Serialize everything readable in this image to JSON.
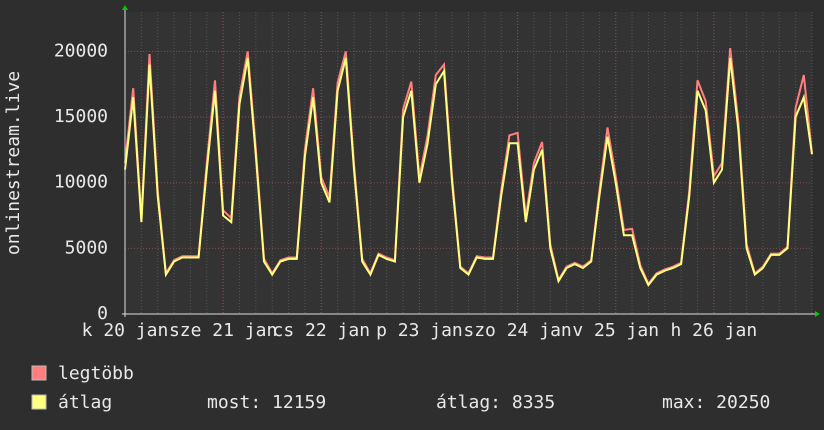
{
  "chart_data": {
    "type": "line",
    "y_label": "onlinestream.live",
    "categories": [
      "k 20 jan",
      null,
      null,
      null,
      null,
      null,
      null,
      null,
      null,
      null,
      null,
      null,
      "sze 21 jan",
      null,
      null,
      null,
      null,
      null,
      null,
      null,
      null,
      null,
      null,
      null,
      "cs 22 jan",
      null,
      null,
      null,
      null,
      null,
      null,
      null,
      null,
      null,
      null,
      null,
      "p 23 jan",
      null,
      null,
      null,
      null,
      null,
      null,
      null,
      null,
      null,
      null,
      null,
      "szo 24 jan",
      null,
      null,
      null,
      null,
      null,
      null,
      null,
      null,
      null,
      null,
      null,
      "v 25 jan",
      null,
      null,
      null,
      null,
      null,
      null,
      null,
      null,
      null,
      null,
      null,
      "h 26 jan",
      null,
      null,
      null,
      null,
      null,
      null,
      null,
      null,
      null,
      null,
      null,
      null
    ],
    "series": [
      {
        "name": "legtöbb",
        "color": "#ff7f7f",
        "values": [
          11500,
          17200,
          7300,
          19800,
          9400,
          3100,
          4100,
          4400,
          4400,
          4400,
          11500,
          17800,
          7900,
          7300,
          16600,
          20000,
          12500,
          4200,
          3100,
          4100,
          4300,
          4300,
          12500,
          17200,
          10400,
          8900,
          17600,
          20000,
          11400,
          4200,
          3100,
          4600,
          4300,
          4100,
          15600,
          17700,
          10400,
          13600,
          18200,
          19000,
          10400,
          3600,
          3100,
          4400,
          4300,
          4300,
          9400,
          13600,
          13800,
          7400,
          11500,
          13100,
          5300,
          2600,
          3600,
          3900,
          3600,
          4100,
          9400,
          14200,
          10500,
          6400,
          6500,
          3700,
          2300,
          3100,
          3400,
          3600,
          3900,
          9400,
          17800,
          16200,
          10500,
          11500,
          20250,
          14600,
          5300,
          3100,
          3600,
          4600,
          4600,
          5100,
          15700,
          18200,
          12200
        ]
      },
      {
        "name": "átlag",
        "color": "#ffff80",
        "values": [
          11000,
          16500,
          7000,
          19000,
          9000,
          3000,
          4000,
          4300,
          4300,
          4300,
          11000,
          17000,
          7500,
          7000,
          16000,
          19500,
          12000,
          4000,
          3000,
          4000,
          4200,
          4200,
          12000,
          16500,
          10000,
          8500,
          17000,
          19500,
          11000,
          4000,
          3000,
          4500,
          4200,
          4000,
          15000,
          17000,
          10000,
          13000,
          17500,
          18500,
          10000,
          3500,
          3000,
          4300,
          4200,
          4200,
          9000,
          13000,
          13000,
          7000,
          11000,
          12500,
          5000,
          2500,
          3500,
          3800,
          3500,
          4000,
          9000,
          13500,
          10000,
          6000,
          6000,
          3500,
          2200,
          3000,
          3300,
          3500,
          3800,
          9000,
          17000,
          15500,
          10000,
          11000,
          19500,
          14000,
          5000,
          3000,
          3500,
          4500,
          4500,
          5000,
          15000,
          16500,
          12159
        ]
      }
    ],
    "stats": [
      "most: 12159",
      "átlag: 8335",
      "max: 20250"
    ],
    "ylim": [
      0,
      23000
    ],
    "yticks": [
      0,
      5000,
      10000,
      15000,
      20000
    ],
    "grid": true
  }
}
